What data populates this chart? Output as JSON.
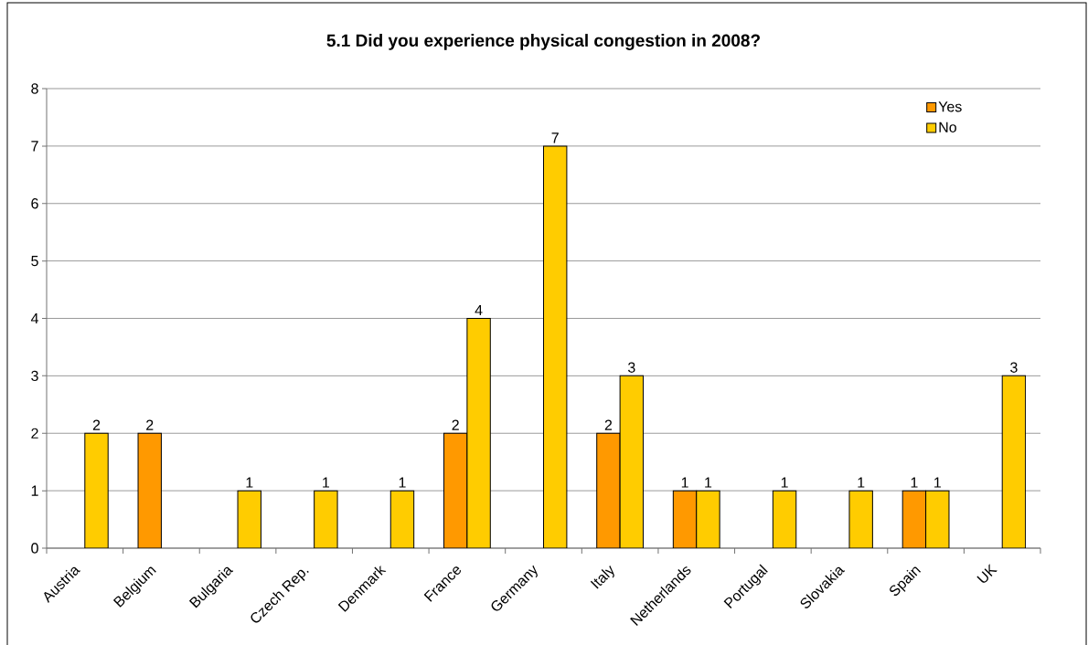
{
  "chart_data": {
    "type": "bar",
    "title": "5.1 Did you experience physical congestion in 2008?",
    "categories": [
      "Austria",
      "Belgium",
      "Bulgaria",
      "Czech Rep.",
      "Denmark",
      "France",
      "Germany",
      "Italy",
      "Netherlands",
      "Portugal",
      "Slovakia",
      "Spain",
      "UK"
    ],
    "series": [
      {
        "name": "Yes",
        "color": "#ff9900",
        "values": [
          null,
          2,
          null,
          null,
          null,
          2,
          null,
          2,
          1,
          null,
          null,
          1,
          null
        ]
      },
      {
        "name": "No",
        "color": "#ffcc00",
        "values": [
          2,
          null,
          1,
          1,
          1,
          4,
          7,
          3,
          1,
          1,
          1,
          1,
          3
        ]
      }
    ],
    "ylim": [
      0,
      8
    ],
    "yticks": [
      0,
      1,
      2,
      3,
      4,
      5,
      6,
      7,
      8
    ],
    "grid": "y",
    "legend": "top right",
    "data_labels": true
  }
}
